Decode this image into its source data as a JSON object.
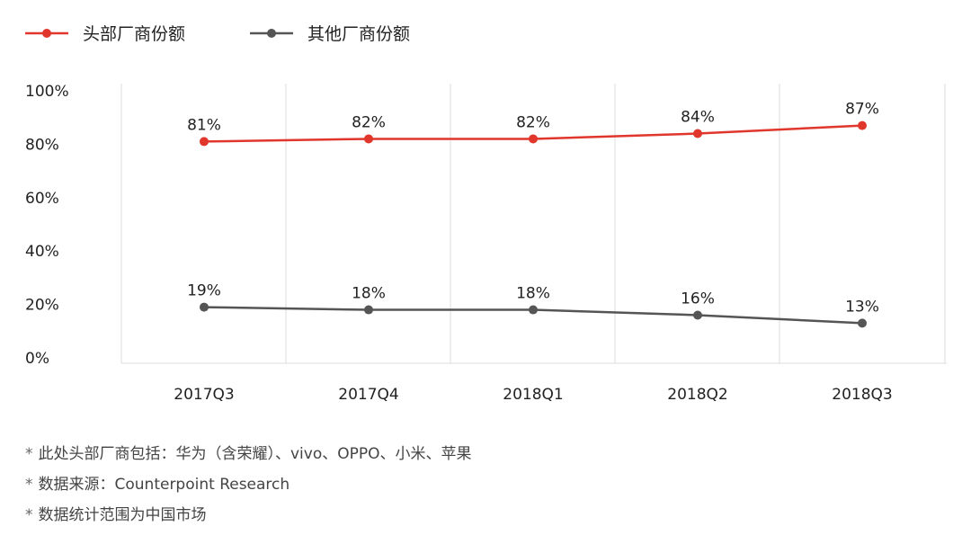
{
  "chart_data": {
    "type": "line",
    "categories": [
      "2017Q3",
      "2017Q4",
      "2018Q1",
      "2018Q2",
      "2018Q3"
    ],
    "y_ticks": [
      "0%",
      "20%",
      "40%",
      "60%",
      "80%",
      "100%"
    ],
    "ylim": [
      0,
      100
    ],
    "grid": true,
    "legend_position": "top-left",
    "series": [
      {
        "name": "头部厂商份额",
        "color": "#e0362c",
        "values": [
          81,
          82,
          82,
          84,
          87
        ],
        "labels": [
          "81%",
          "82%",
          "82%",
          "84%",
          "87%"
        ]
      },
      {
        "name": "其他厂商份额",
        "color": "#555555",
        "values": [
          19,
          18,
          18,
          16,
          13
        ],
        "labels": [
          "19%",
          "18%",
          "18%",
          "16%",
          "13%"
        ]
      }
    ]
  },
  "notes": [
    "此处头部厂商包括：华为（含荣耀）、vivo、OPPO、小米、苹果",
    "数据来源：Counterpoint Research",
    "数据统计范围为中国市场"
  ],
  "note_marker": "*"
}
